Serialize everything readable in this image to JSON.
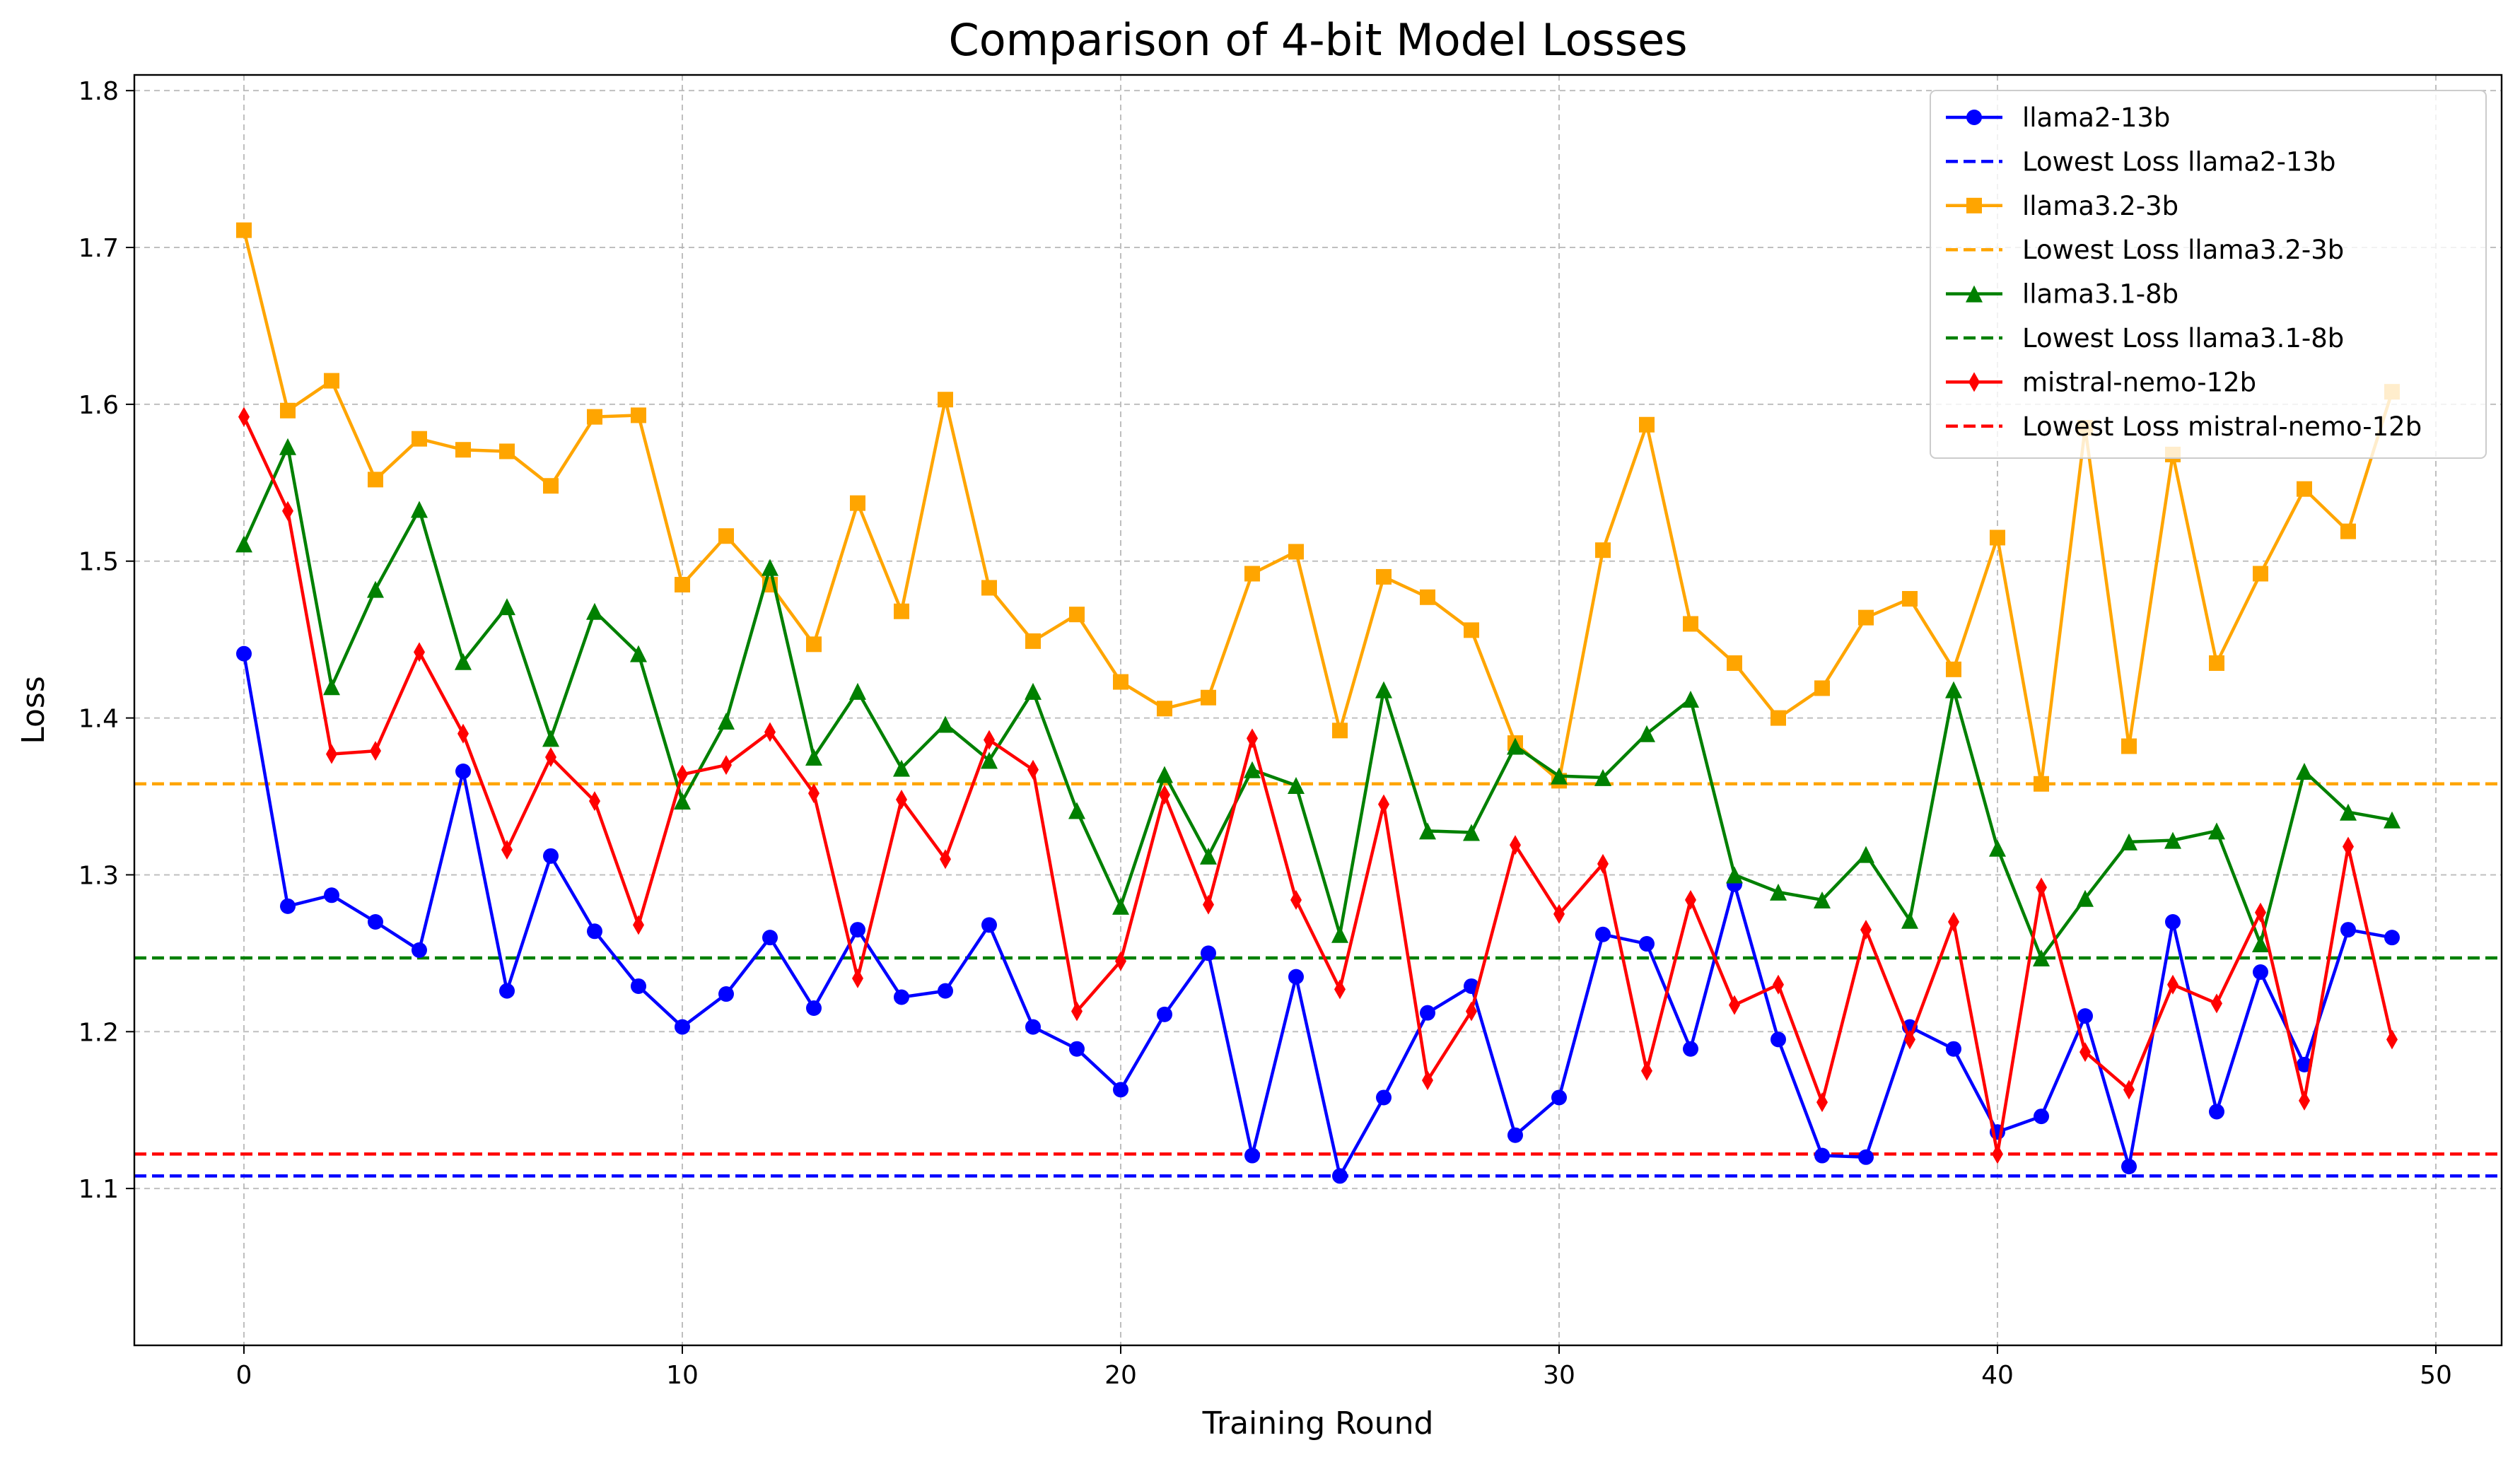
{
  "chart_data": {
    "type": "line",
    "title": "Comparison of 4-bit Model Losses",
    "xlabel": "Training Round",
    "ylabel": "Loss",
    "xlim": [
      -2.5,
      51.5
    ],
    "ylim": [
      1.0,
      1.81
    ],
    "xticks": [
      0,
      10,
      20,
      30,
      40,
      50
    ],
    "yticks": [
      1.1,
      1.2,
      1.3,
      1.4,
      1.5,
      1.6,
      1.7,
      1.8
    ],
    "grid": true,
    "legend_position": "top-right",
    "x": [
      0,
      1,
      2,
      3,
      4,
      5,
      6,
      7,
      8,
      9,
      10,
      11,
      12,
      13,
      14,
      15,
      16,
      17,
      18,
      19,
      20,
      21,
      22,
      23,
      24,
      25,
      26,
      27,
      28,
      29,
      30,
      31,
      32,
      33,
      34,
      35,
      36,
      37,
      38,
      39,
      40,
      41,
      42,
      43,
      44,
      45,
      46,
      47,
      48,
      49
    ],
    "series": [
      {
        "name": "llama2-13b",
        "color": "#0000ff",
        "marker": "circle",
        "values": [
          1.441,
          1.28,
          1.287,
          1.27,
          1.252,
          1.366,
          1.226,
          1.312,
          1.264,
          1.229,
          1.203,
          1.224,
          1.26,
          1.215,
          1.265,
          1.222,
          1.226,
          1.268,
          1.203,
          1.189,
          1.163,
          1.211,
          1.25,
          1.121,
          1.235,
          1.108,
          1.158,
          1.212,
          1.229,
          1.134,
          1.158,
          1.262,
          1.256,
          1.189,
          1.294,
          1.195,
          1.121,
          1.12,
          1.203,
          1.189,
          1.136,
          1.146,
          1.21,
          1.114,
          1.27,
          1.149,
          1.238,
          1.179,
          1.265,
          1.26
        ]
      },
      {
        "name": "llama3.2-3b",
        "color": "#ffa500",
        "marker": "square",
        "values": [
          1.711,
          1.596,
          1.615,
          1.552,
          1.578,
          1.571,
          1.57,
          1.548,
          1.592,
          1.593,
          1.485,
          1.516,
          1.485,
          1.447,
          1.537,
          1.468,
          1.603,
          1.483,
          1.449,
          1.466,
          1.423,
          1.406,
          1.413,
          1.492,
          1.506,
          1.392,
          1.49,
          1.477,
          1.456,
          1.384,
          1.36,
          1.507,
          1.587,
          1.46,
          1.435,
          1.4,
          1.419,
          1.464,
          1.476,
          1.431,
          1.515,
          1.358,
          1.585,
          1.382,
          1.568,
          1.435,
          1.492,
          1.546,
          1.519,
          1.608
        ]
      },
      {
        "name": "llama3.1-8b",
        "color": "#008000",
        "marker": "triangle",
        "values": [
          1.511,
          1.573,
          1.42,
          1.482,
          1.533,
          1.436,
          1.471,
          1.387,
          1.468,
          1.441,
          1.347,
          1.398,
          1.496,
          1.375,
          1.417,
          1.368,
          1.396,
          1.373,
          1.417,
          1.341,
          1.28,
          1.364,
          1.312,
          1.367,
          1.357,
          1.262,
          1.418,
          1.328,
          1.327,
          1.382,
          1.363,
          1.362,
          1.39,
          1.412,
          1.3,
          1.289,
          1.284,
          1.313,
          1.271,
          1.418,
          1.317,
          1.247,
          1.285,
          1.321,
          1.322,
          1.328,
          1.256,
          1.366,
          1.34,
          1.335
        ]
      },
      {
        "name": "mistral-nemo-12b",
        "color": "#ff0000",
        "marker": "diamond",
        "values": [
          1.592,
          1.532,
          1.377,
          1.379,
          1.442,
          1.39,
          1.316,
          1.375,
          1.347,
          1.268,
          1.364,
          1.37,
          1.391,
          1.352,
          1.234,
          1.348,
          1.31,
          1.386,
          1.367,
          1.213,
          1.245,
          1.351,
          1.281,
          1.387,
          1.284,
          1.227,
          1.345,
          1.169,
          1.213,
          1.319,
          1.275,
          1.307,
          1.175,
          1.284,
          1.217,
          1.23,
          1.155,
          1.265,
          1.195,
          1.27,
          1.122,
          1.292,
          1.187,
          1.163,
          1.23,
          1.218,
          1.276,
          1.156,
          1.318,
          1.195
        ]
      }
    ],
    "reference_lines": [
      {
        "name": "Lowest Loss llama2-13b",
        "color": "#0000ff",
        "y": 1.108
      },
      {
        "name": "Lowest Loss llama3.2-3b",
        "color": "#ffa500",
        "y": 1.358
      },
      {
        "name": "Lowest Loss llama3.1-8b",
        "color": "#008000",
        "y": 1.247
      },
      {
        "name": "Lowest Loss mistral-nemo-12b",
        "color": "#ff0000",
        "y": 1.122
      }
    ],
    "legend_order": [
      {
        "kind": "series",
        "index": 0
      },
      {
        "kind": "ref",
        "index": 0
      },
      {
        "kind": "series",
        "index": 1
      },
      {
        "kind": "ref",
        "index": 1
      },
      {
        "kind": "series",
        "index": 2
      },
      {
        "kind": "ref",
        "index": 2
      },
      {
        "kind": "series",
        "index": 3
      },
      {
        "kind": "ref",
        "index": 3
      }
    ]
  }
}
